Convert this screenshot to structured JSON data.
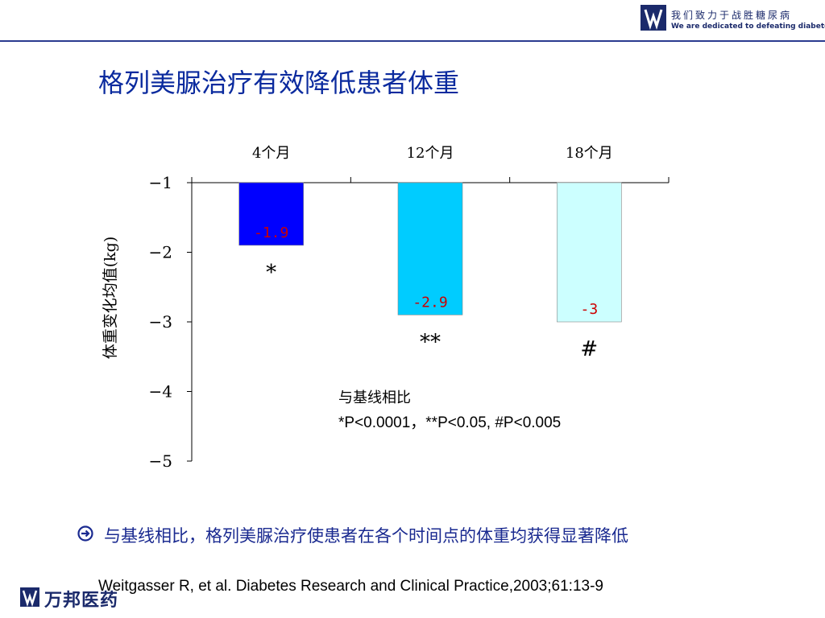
{
  "header": {
    "slogan_cn": "我们致力于战胜糖尿病",
    "slogan_en": "We are dedicated to defeating diabetes"
  },
  "title": "格列美脲治疗有效降低患者体重",
  "colors": {
    "title": "#0a2a9e",
    "bar_4m": "#0000ff",
    "bar_12m": "#00ccff",
    "bar_18m": "#ccffff",
    "value_label": "#cc0000"
  },
  "chart_data": {
    "type": "bar",
    "categories": [
      "4个月",
      "12个月",
      "18个月"
    ],
    "values": [
      -1.9,
      -2.9,
      -3
    ],
    "value_labels": [
      "-1.9",
      "-2.9",
      "-3"
    ],
    "significance_marks": [
      "*",
      "**",
      "#"
    ],
    "ylabel": "体重变化均值(kg)",
    "ylim": [
      -5,
      -1
    ],
    "yticks": [
      -1,
      -2,
      -3,
      -4,
      -5
    ],
    "xaxis_position": "top",
    "grid": false
  },
  "note": {
    "line1": "与基线相比",
    "line2": "*P<0.0001，**P<0.05, #P<0.005"
  },
  "bullet": {
    "icon": "arrow-circle-icon",
    "text": "与基线相比，格列美脲治疗使患者在各个时间点的体重均获得显著降低"
  },
  "citation": "Weitgasser R, et al. Diabetes Research and Clinical Practice,2003;61:13-9",
  "footer": {
    "brand": "万邦医药"
  }
}
